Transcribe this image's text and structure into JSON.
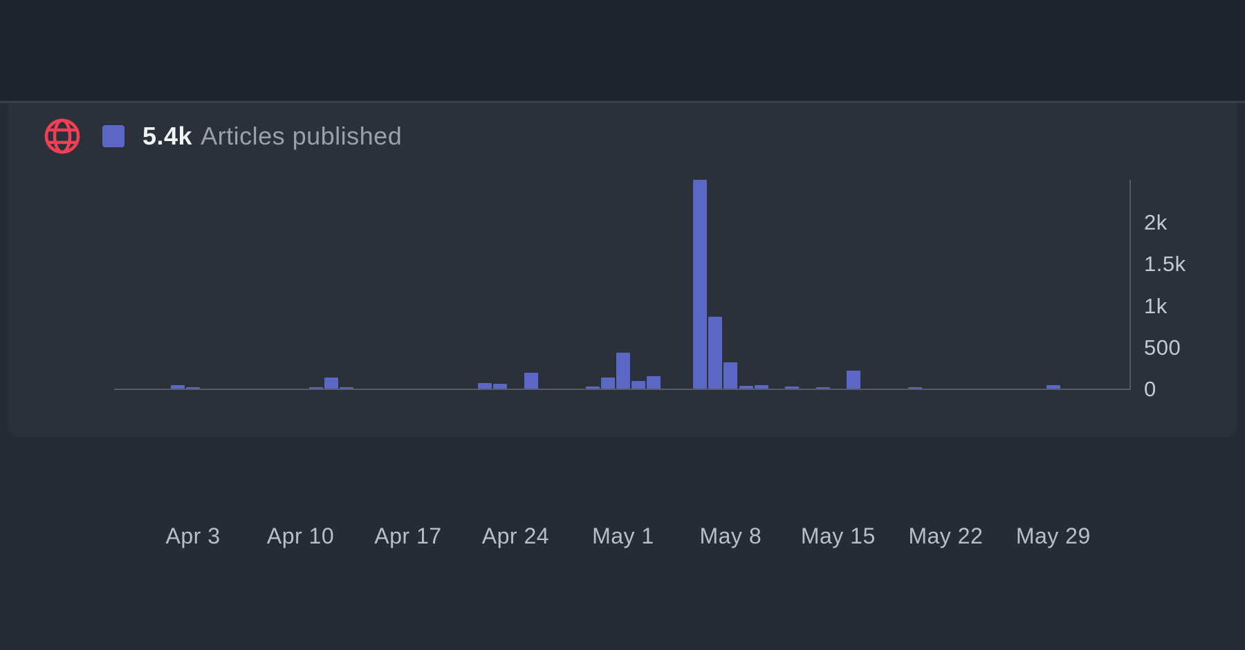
{
  "header": {
    "total": "5.4k",
    "series_label": "Articles published",
    "icon": "globe-icon"
  },
  "colors": {
    "bar": "#5a67c4",
    "globe_icon": "#f23f55",
    "top_band_bg": "#20252d",
    "page_bg": "#272c34",
    "card_bg": "#2b313a",
    "axis_line": "#575c64",
    "y_tick_text": "#c4cad2",
    "x_tick_text": "#b8bfc8",
    "total_text": "#f3f4f6",
    "series_label_text": "#99a1ab"
  },
  "chart_data": {
    "type": "bar",
    "title": "Articles published",
    "total_label": "5.4k",
    "legend": [
      {
        "label": "Articles published",
        "color": "#5a67c4"
      }
    ],
    "y_axis": {
      "position": "right",
      "max": 2500,
      "ticks": [
        {
          "label": "2k",
          "value": 2000
        },
        {
          "label": "1.5k",
          "value": 1500
        },
        {
          "label": "1k",
          "value": 1000
        },
        {
          "label": "500",
          "value": 500
        },
        {
          "label": "0",
          "value": 0
        }
      ]
    },
    "x_axis": {
      "ticks": [
        {
          "label": "Apr 3",
          "day": 0
        },
        {
          "label": "Apr 10",
          "day": 7
        },
        {
          "label": "Apr 17",
          "day": 14
        },
        {
          "label": "Apr 24",
          "day": 21
        },
        {
          "label": "May 1",
          "day": 28
        },
        {
          "label": "May 8",
          "day": 35
        },
        {
          "label": "May 15",
          "day": 42
        },
        {
          "label": "May 22",
          "day": 49
        },
        {
          "label": "May 29",
          "day": 56
        }
      ]
    },
    "bars": [
      {
        "date": "Apr 2",
        "day": -1,
        "value": 45
      },
      {
        "date": "Apr 3",
        "day": 0,
        "value": 15
      },
      {
        "date": "Apr 11",
        "day": 8,
        "value": 18
      },
      {
        "date": "Apr 12",
        "day": 9,
        "value": 135
      },
      {
        "date": "Apr 13",
        "day": 10,
        "value": 8
      },
      {
        "date": "Apr 22",
        "day": 19,
        "value": 70
      },
      {
        "date": "Apr 23",
        "day": 20,
        "value": 60
      },
      {
        "date": "Apr 25",
        "day": 22,
        "value": 195
      },
      {
        "date": "Apr 29",
        "day": 26,
        "value": 25
      },
      {
        "date": "Apr 30",
        "day": 27,
        "value": 135
      },
      {
        "date": "May 1",
        "day": 28,
        "value": 430
      },
      {
        "date": "May 2",
        "day": 29,
        "value": 95
      },
      {
        "date": "May 3",
        "day": 30,
        "value": 150
      },
      {
        "date": "May 6",
        "day": 33,
        "value": 2510
      },
      {
        "date": "May 7",
        "day": 34,
        "value": 860
      },
      {
        "date": "May 8",
        "day": 35,
        "value": 315
      },
      {
        "date": "May 9",
        "day": 36,
        "value": 30
      },
      {
        "date": "May 10",
        "day": 37,
        "value": 45
      },
      {
        "date": "May 12",
        "day": 39,
        "value": 22
      },
      {
        "date": "May 14",
        "day": 41,
        "value": 10
      },
      {
        "date": "May 16",
        "day": 43,
        "value": 215
      },
      {
        "date": "May 20",
        "day": 47,
        "value": 8
      },
      {
        "date": "May 29",
        "day": 56,
        "value": 40
      }
    ]
  }
}
